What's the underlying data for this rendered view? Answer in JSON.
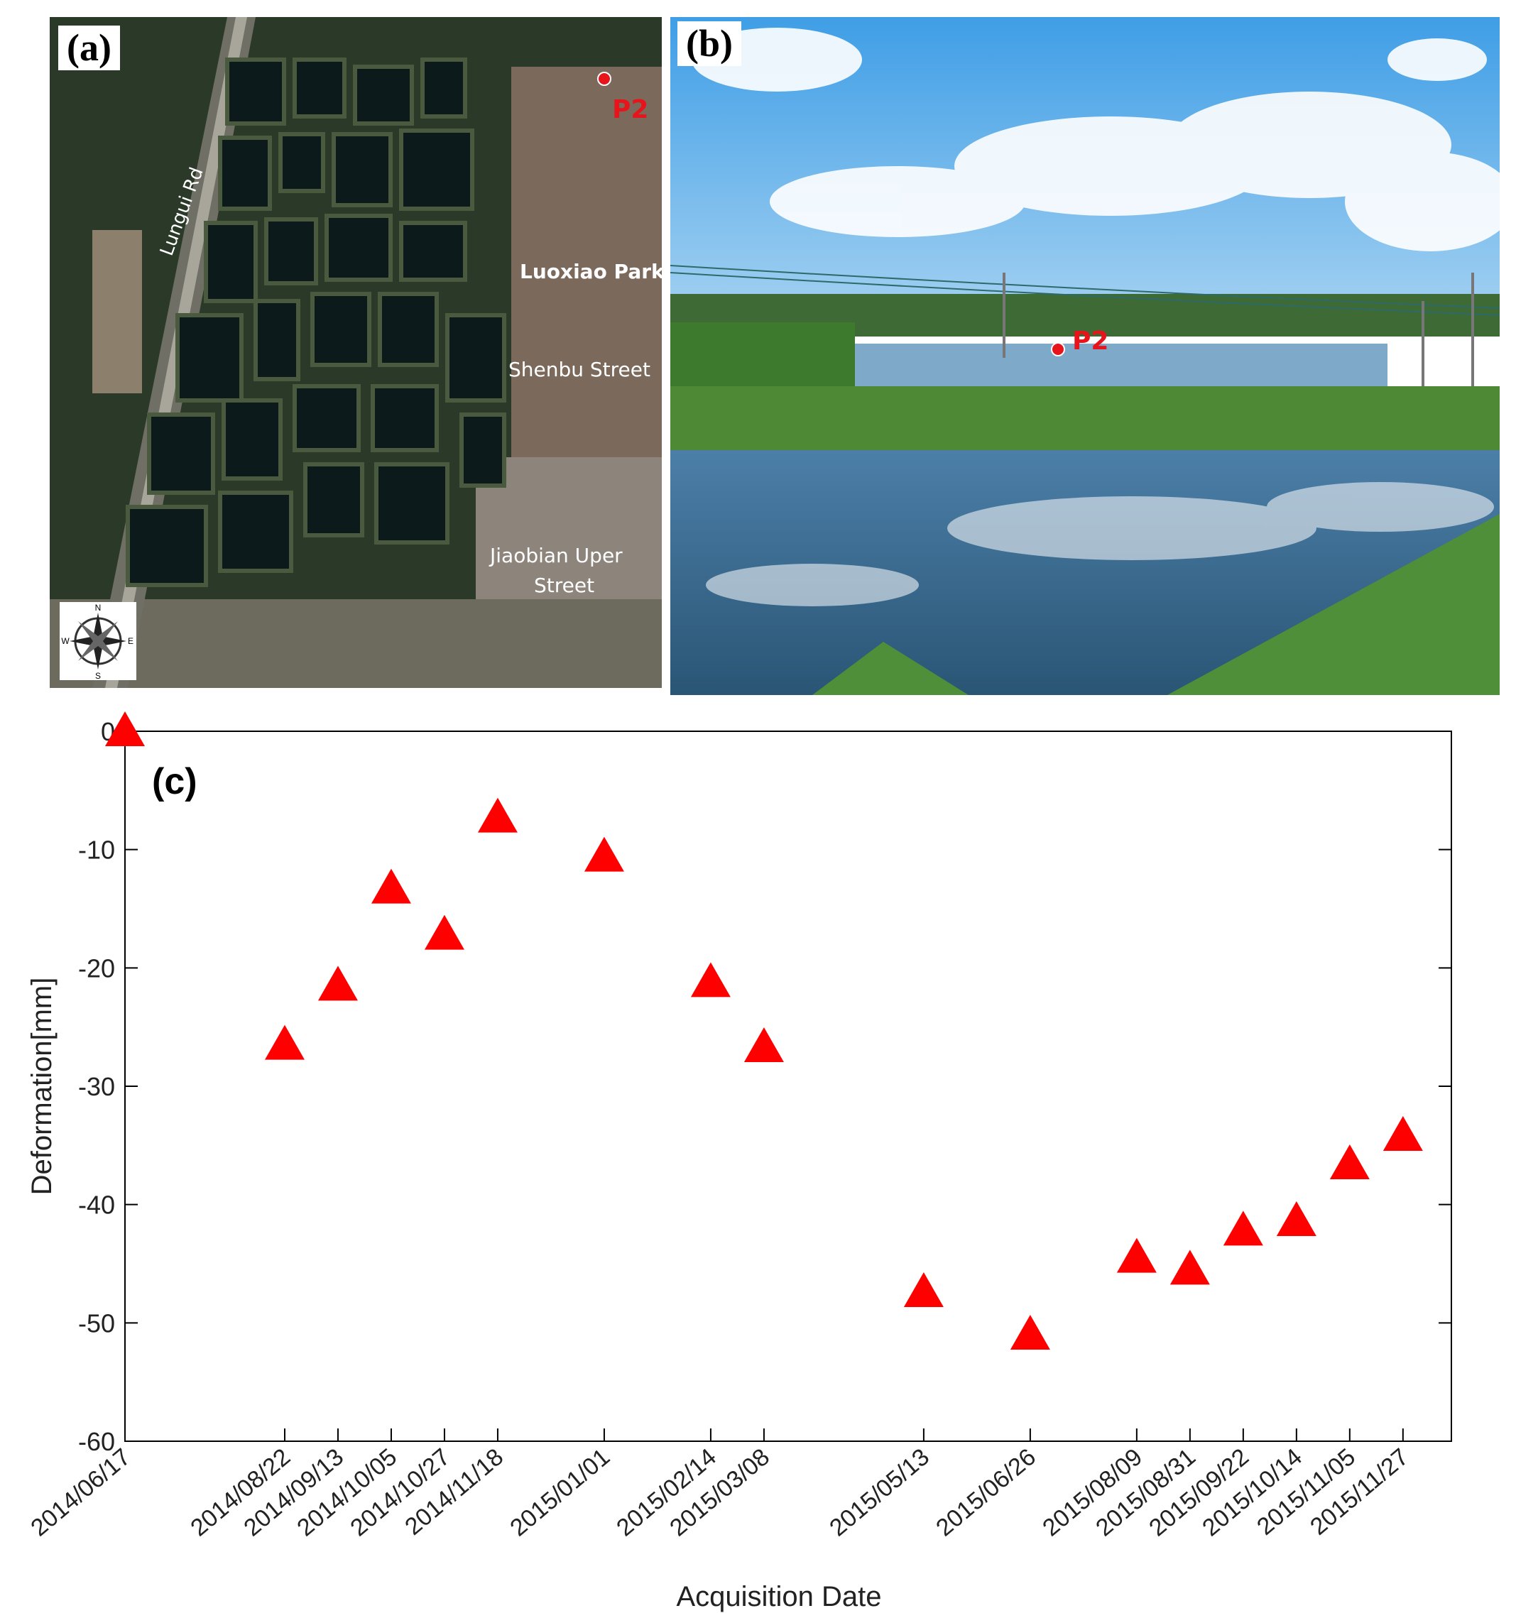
{
  "panel_a": {
    "label": "(a)",
    "places": {
      "road": "Lungui Rd",
      "park": "Luoxiao Park",
      "street1": "Shenbu Street",
      "street2_line1": "Jiaobian Uper",
      "street2_line2": "Street"
    },
    "marker": "P2",
    "compass": {
      "n": "N",
      "s": "S",
      "e": "E",
      "w": "W"
    }
  },
  "panel_b": {
    "label": "(b)",
    "marker": "P2"
  },
  "chart_data": {
    "type": "scatter",
    "panel_label": "(c)",
    "xlabel": "Acquisition Date",
    "ylabel": "Deformation[mm]",
    "ylim": [
      -60,
      0
    ],
    "yticks": [
      0,
      -10,
      -20,
      -30,
      -40,
      -50,
      -60
    ],
    "xlim": [
      "2014/06/17",
      "2015/12/17"
    ],
    "marker": "triangle",
    "marker_color": "#ff0000",
    "grid": false,
    "points": [
      {
        "x": "2014/06/17",
        "y": 0
      },
      {
        "x": "2014/08/22",
        "y": -26.5
      },
      {
        "x": "2014/09/13",
        "y": -21.5
      },
      {
        "x": "2014/10/05",
        "y": -13.3
      },
      {
        "x": "2014/10/27",
        "y": -17.2
      },
      {
        "x": "2014/11/18",
        "y": -7.3
      },
      {
        "x": "2015/01/01",
        "y": -10.6
      },
      {
        "x": "2015/02/14",
        "y": -21.2
      },
      {
        "x": "2015/03/08",
        "y": -26.7
      },
      {
        "x": "2015/05/13",
        "y": -47.4
      },
      {
        "x": "2015/06/26",
        "y": -51
      },
      {
        "x": "2015/08/09",
        "y": -44.5
      },
      {
        "x": "2015/08/31",
        "y": -45.5
      },
      {
        "x": "2015/09/22",
        "y": -42.2
      },
      {
        "x": "2015/10/14",
        "y": -41.4
      },
      {
        "x": "2015/11/05",
        "y": -36.6
      },
      {
        "x": "2015/11/27",
        "y": -34.2
      }
    ]
  }
}
